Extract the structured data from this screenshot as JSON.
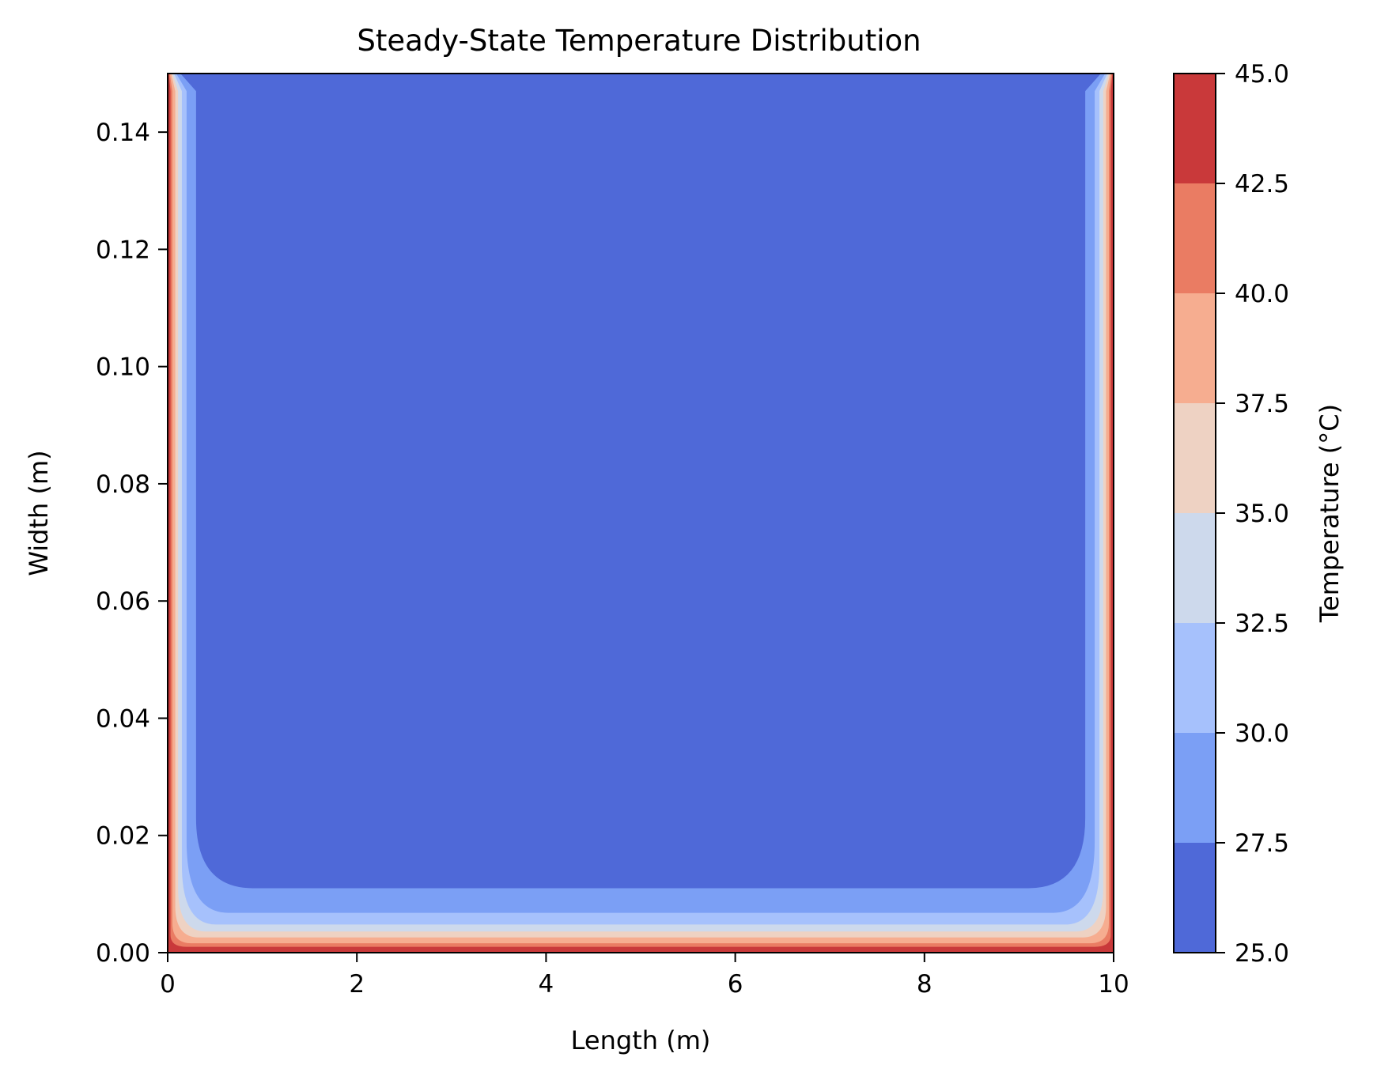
{
  "chart_data": {
    "type": "heatmap",
    "subtype": "filled-contour",
    "title": "Steady-State Temperature Distribution",
    "xlabel": "Length (m)",
    "ylabel": "Width (m)",
    "xlim": [
      0,
      10
    ],
    "ylim": [
      0,
      0.15
    ],
    "x_ticks": [
      0,
      2,
      4,
      6,
      8,
      10
    ],
    "x_tick_labels": [
      "0",
      "2",
      "4",
      "6",
      "8",
      "10"
    ],
    "y_ticks": [
      0,
      0.02,
      0.04,
      0.06,
      0.08,
      0.1,
      0.12,
      0.14
    ],
    "y_tick_labels": [
      "0.00",
      "0.02",
      "0.04",
      "0.06",
      "0.08",
      "0.10",
      "0.12",
      "0.14"
    ],
    "grid": false,
    "colorbar": {
      "label": "Temperature (°C)",
      "range": [
        25,
        45
      ],
      "ticks": [
        25,
        27.5,
        30,
        32.5,
        35,
        37.5,
        40,
        42.5,
        45
      ],
      "tick_labels": [
        "25.0",
        "27.5",
        "30.0",
        "32.5",
        "35.0",
        "37.5",
        "40.0",
        "42.5",
        "45.0"
      ],
      "colormap": "coolwarm",
      "level_colors": [
        "#4f69d8",
        "#7b9ff5",
        "#a6c1fc",
        "#cdd9ec",
        "#eed2c3",
        "#f6ad90",
        "#ea7c63",
        "#c9393a"
      ]
    },
    "boundary_conditions": {
      "hot_edges": [
        "left",
        "right",
        "bottom"
      ],
      "edge_temperature": 45,
      "interior_temperature": 25
    },
    "contour_lines": [
      {
        "level": 42.5,
        "x_inset": 0.03,
        "y_inset": 0.001,
        "y_knee": 0.003
      },
      {
        "level": 40,
        "x_inset": 0.05,
        "y_inset": 0.0016,
        "y_knee": 0.005
      },
      {
        "level": 37.5,
        "x_inset": 0.08,
        "y_inset": 0.0026,
        "y_knee": 0.008
      },
      {
        "level": 35,
        "x_inset": 0.11,
        "y_inset": 0.0036,
        "y_knee": 0.011
      },
      {
        "level": 32.5,
        "x_inset": 0.15,
        "y_inset": 0.0048,
        "y_knee": 0.015
      },
      {
        "level": 30,
        "x_inset": 0.2,
        "y_inset": 0.0068,
        "y_knee": 0.019
      },
      {
        "level": 27.5,
        "x_inset": 0.3,
        "y_inset": 0.011,
        "y_knee": 0.023
      }
    ]
  }
}
